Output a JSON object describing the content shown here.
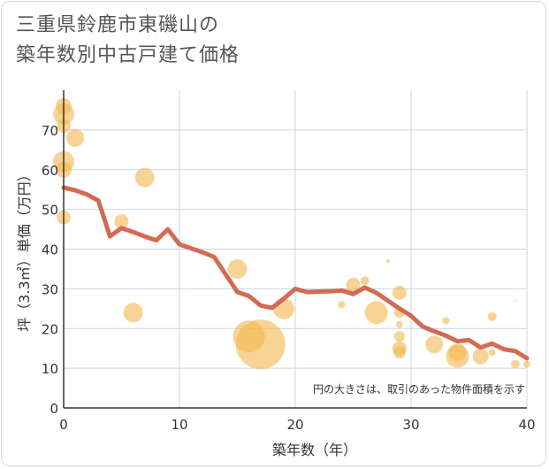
{
  "title": {
    "line1": "三重県鈴鹿市東磯山の",
    "line2": "築年数別中古戸建て価格"
  },
  "colors": {
    "bubble": "#f2b74f",
    "line": "#d36b53",
    "grid": "#c9d5e0",
    "axis": "#333333"
  },
  "chart_data": {
    "type": "scatter",
    "xlabel": "築年数（年）",
    "ylabel": "坪（3.3㎡）単価（万円）",
    "xlim": [
      0,
      40
    ],
    "ylim": [
      0,
      80
    ],
    "xticks": [
      "0",
      "10",
      "20",
      "30",
      "40"
    ],
    "yticks": [
      "0",
      "10",
      "20",
      "30",
      "40",
      "50",
      "60",
      "70"
    ],
    "grid": true,
    "note": "円の大きさは、取引のあった物件面積を示す",
    "bubbles": [
      {
        "x": 0,
        "y": 76,
        "r": 9
      },
      {
        "x": 0,
        "y": 74,
        "r": 12
      },
      {
        "x": 0,
        "y": 71,
        "r": 8
      },
      {
        "x": 0,
        "y": 62,
        "r": 12
      },
      {
        "x": 0,
        "y": 60,
        "r": 9
      },
      {
        "x": 0,
        "y": 48,
        "r": 8
      },
      {
        "x": 1,
        "y": 68,
        "r": 10
      },
      {
        "x": 5,
        "y": 47,
        "r": 8
      },
      {
        "x": 6,
        "y": 24,
        "r": 11
      },
      {
        "x": 7,
        "y": 58,
        "r": 11
      },
      {
        "x": 15,
        "y": 35,
        "r": 11
      },
      {
        "x": 16,
        "y": 18,
        "r": 18
      },
      {
        "x": 17,
        "y": 16,
        "r": 28
      },
      {
        "x": 19,
        "y": 25,
        "r": 12
      },
      {
        "x": 24,
        "y": 26,
        "r": 4
      },
      {
        "x": 25,
        "y": 31,
        "r": 8
      },
      {
        "x": 26,
        "y": 32,
        "r": 5
      },
      {
        "x": 27,
        "y": 24,
        "r": 13
      },
      {
        "x": 28,
        "y": 37,
        "r": 2
      },
      {
        "x": 29,
        "y": 29,
        "r": 8
      },
      {
        "x": 29,
        "y": 24,
        "r": 6
      },
      {
        "x": 29,
        "y": 21,
        "r": 4
      },
      {
        "x": 29,
        "y": 18,
        "r": 6
      },
      {
        "x": 29,
        "y": 15,
        "r": 8
      },
      {
        "x": 29,
        "y": 14,
        "r": 7
      },
      {
        "x": 32,
        "y": 16,
        "r": 10
      },
      {
        "x": 33,
        "y": 22,
        "r": 4
      },
      {
        "x": 34,
        "y": 13,
        "r": 13
      },
      {
        "x": 34,
        "y": 14,
        "r": 10
      },
      {
        "x": 36,
        "y": 13,
        "r": 9
      },
      {
        "x": 37,
        "y": 23,
        "r": 5
      },
      {
        "x": 37,
        "y": 14,
        "r": 4
      },
      {
        "x": 39,
        "y": 27,
        "r": 1
      },
      {
        "x": 39,
        "y": 11,
        "r": 5
      },
      {
        "x": 40,
        "y": 11,
        "r": 4
      }
    ],
    "trend": {
      "x": [
        0,
        1,
        2,
        3,
        4,
        5,
        6,
        7,
        8,
        9,
        10,
        11,
        12,
        13,
        14,
        15,
        16,
        17,
        18,
        19,
        20,
        21,
        22,
        23,
        24,
        25,
        26,
        27,
        28,
        29,
        30,
        31,
        32,
        33,
        34,
        35,
        36,
        37,
        38,
        39,
        40
      ],
      "y": [
        55.5,
        54.8,
        53.8,
        52.2,
        43.2,
        45.3,
        44.3,
        43.2,
        42.2,
        45.0,
        41.2,
        40.2,
        39.2,
        38.0,
        33.6,
        29.2,
        28.2,
        25.8,
        25.2,
        27.5,
        30.0,
        29.2,
        29.3,
        29.4,
        29.6,
        28.7,
        30.3,
        29.0,
        27.0,
        25.0,
        23.2,
        20.5,
        19.3,
        18.2,
        16.8,
        17.1,
        15.2,
        16.2,
        14.8,
        14.3,
        12.5
      ]
    }
  }
}
